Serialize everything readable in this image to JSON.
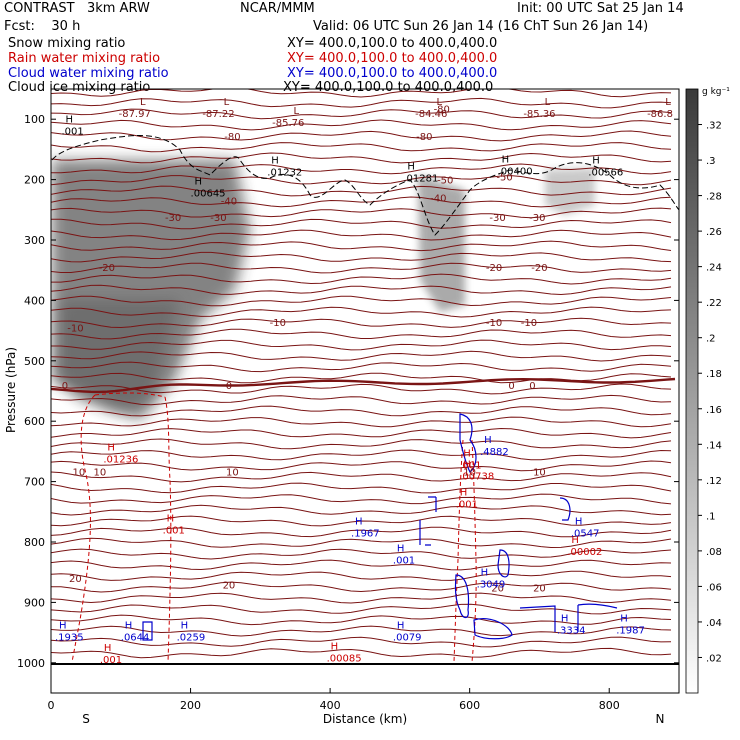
{
  "header": {
    "model": "CONTRAST   3km ARW",
    "org": "NCAR/MMM",
    "init": "Init: 00 UTC Sat 25 Jan 14",
    "fcst": "Fcst:    30 h",
    "valid": "Valid: 06 UTC Sun 26 Jan 14 (16 ChT Sun 26 Jan 14)"
  },
  "legend": [
    {
      "name": "Snow mixing ratio",
      "xy": "XY= 400.0,100.0 to 400.0,400.0",
      "color": "#000000"
    },
    {
      "name": "Rain water mixing ratio",
      "xy": "XY= 400.0,100.0 to 400.0,400.0",
      "color": "#cc0000"
    },
    {
      "name": "Cloud water mixing ratio",
      "xy": "XY= 400.0,100.0 to 400.0,400.0",
      "color": "#0000cc"
    },
    {
      "name": "Cloud ice mixing ratio",
      "xy": "XY= 400.0,100.0 to 400.0,400.0",
      "color": "#000000"
    }
  ],
  "colorbar": {
    "unit": "g kg⁻¹",
    "ticks": [
      ".32",
      ".3",
      ".28",
      ".26",
      ".24",
      ".22",
      ".2",
      ".18",
      ".16",
      ".14",
      ".12",
      ".1",
      ".08",
      ".06",
      ".04",
      ".02"
    ]
  },
  "chart_data": {
    "type": "heatmap",
    "title": "",
    "xlabel": "Distance (km)",
    "ylabel": "Pressure (hPa)",
    "xlim": [
      0,
      900
    ],
    "ylim": [
      1050,
      50
    ],
    "xticks": [
      "0",
      "200",
      "400",
      "600",
      "800"
    ],
    "yticks": [
      "100",
      "200",
      "300",
      "400",
      "500",
      "600",
      "700",
      "800",
      "900",
      "1000"
    ],
    "x_end_labels": {
      "left": "S",
      "right": "N"
    },
    "temperature_labels": [
      {
        "x": 260,
        "p": 128,
        "text": "-80"
      },
      {
        "x": 535,
        "p": 128,
        "text": "-80"
      },
      {
        "x": 560,
        "p": 82,
        "text": "-80"
      },
      {
        "x": 565,
        "p": 200,
        "text": "-50"
      },
      {
        "x": 650,
        "p": 195,
        "text": "-50"
      },
      {
        "x": 555,
        "p": 230,
        "text": "-40"
      },
      {
        "x": 255,
        "p": 235,
        "text": "-40"
      },
      {
        "x": 175,
        "p": 262,
        "text": "-30"
      },
      {
        "x": 240,
        "p": 262,
        "text": "-30"
      },
      {
        "x": 640,
        "p": 262,
        "text": "-30"
      },
      {
        "x": 697,
        "p": 262,
        "text": "-30"
      },
      {
        "x": 80,
        "p": 345,
        "text": "-20"
      },
      {
        "x": 635,
        "p": 345,
        "text": "-20"
      },
      {
        "x": 700,
        "p": 345,
        "text": "-20"
      },
      {
        "x": 35,
        "p": 445,
        "text": "-10"
      },
      {
        "x": 325,
        "p": 436,
        "text": "-10"
      },
      {
        "x": 635,
        "p": 436,
        "text": "-10"
      },
      {
        "x": 685,
        "p": 436,
        "text": "-10"
      },
      {
        "x": 20,
        "p": 540,
        "text": "0"
      },
      {
        "x": 255,
        "p": 540,
        "text": "0"
      },
      {
        "x": 660,
        "p": 540,
        "text": "0"
      },
      {
        "x": 690,
        "p": 540,
        "text": "0"
      },
      {
        "x": 40,
        "p": 683,
        "text": "10"
      },
      {
        "x": 70,
        "p": 683,
        "text": "10"
      },
      {
        "x": 260,
        "p": 683,
        "text": "10"
      },
      {
        "x": 600,
        "p": 683,
        "text": "10"
      },
      {
        "x": 700,
        "p": 683,
        "text": "10"
      },
      {
        "x": 35,
        "p": 860,
        "text": "20"
      },
      {
        "x": 255,
        "p": 870,
        "text": "20"
      },
      {
        "x": 640,
        "p": 875,
        "text": "20"
      },
      {
        "x": 700,
        "p": 875,
        "text": "20"
      }
    ],
    "lows": [
      {
        "x": 120,
        "p": 70,
        "value": "-87.97"
      },
      {
        "x": 240,
        "p": 70,
        "value": "-87.22"
      },
      {
        "x": 340,
        "p": 85,
        "value": "-85.76"
      },
      {
        "x": 545,
        "p": 70,
        "value": "-84.46"
      },
      {
        "x": 700,
        "p": 70,
        "value": "-85.36"
      },
      {
        "x": 900,
        "p": 70,
        "value": "-86.8"
      }
    ],
    "cloud_ice_highs": [
      {
        "x": 15,
        "p": 112,
        "value": ".001"
      },
      {
        "x": 310,
        "p": 180,
        "value": ".01232"
      },
      {
        "x": 200,
        "p": 215,
        "value": ".00645"
      },
      {
        "x": 505,
        "p": 190,
        "value": ".01281"
      },
      {
        "x": 640,
        "p": 178,
        "value": ".00400"
      },
      {
        "x": 770,
        "p": 180,
        "value": ".00566"
      }
    ],
    "rain_highs": [
      {
        "x": 75,
        "p": 655,
        "value": ".01236"
      },
      {
        "x": 585,
        "p": 683,
        "value": ".00738"
      },
      {
        "x": 585,
        "p": 665,
        "value": ".001"
      },
      {
        "x": 580,
        "p": 730,
        "value": ".001"
      },
      {
        "x": 160,
        "p": 773,
        "value": ".001"
      },
      {
        "x": 740,
        "p": 808,
        "value": ".00002"
      },
      {
        "x": 70,
        "p": 987,
        "value": ".001"
      },
      {
        "x": 395,
        "p": 985,
        "value": ".00085"
      }
    ],
    "cloud_water_highs": [
      {
        "x": 430,
        "p": 778,
        "value": ".1967"
      },
      {
        "x": 490,
        "p": 822,
        "value": ".001"
      },
      {
        "x": 615,
        "p": 643,
        "value": ".4882"
      },
      {
        "x": 610,
        "p": 862,
        "value": ".3049"
      },
      {
        "x": 745,
        "p": 778,
        "value": ".0547"
      },
      {
        "x": 0,
        "p": 950,
        "value": ".1935"
      },
      {
        "x": 100,
        "p": 950,
        "value": ".0644"
      },
      {
        "x": 180,
        "p": 950,
        "value": ".0259"
      },
      {
        "x": 490,
        "p": 950,
        "value": ".0079"
      },
      {
        "x": 725,
        "p": 938,
        "value": ".3334"
      },
      {
        "x": 810,
        "p": 938,
        "value": ".1987"
      }
    ]
  }
}
